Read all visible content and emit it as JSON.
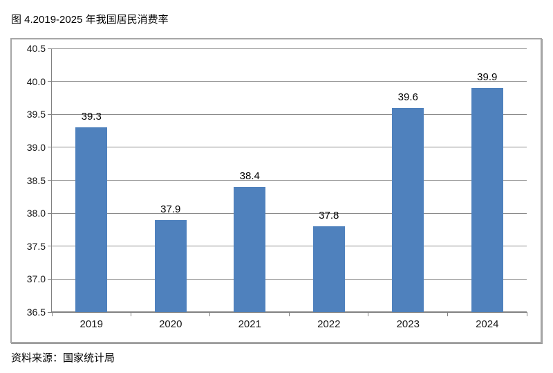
{
  "page": {
    "title": "图 4.2019-2025 年我国居民消费率",
    "source": "资料来源：国家统计局"
  },
  "chart_data": {
    "type": "bar",
    "title": "图 4.2019-2025 年我国居民消费率",
    "categories": [
      "2019",
      "2020",
      "2021",
      "2022",
      "2023",
      "2024"
    ],
    "values": [
      39.3,
      37.9,
      38.4,
      37.8,
      39.6,
      39.9
    ],
    "data_labels": [
      "39.3",
      "37.9",
      "38.4",
      "37.8",
      "39.6",
      "39.9"
    ],
    "xlabel": "",
    "ylabel": "",
    "ylim": [
      36.5,
      40.5
    ],
    "ytick_step": 0.5,
    "ytick_labels": [
      "36.5",
      "37.0",
      "37.5",
      "38.0",
      "38.5",
      "39.0",
      "39.5",
      "40.0",
      "40.5"
    ],
    "grid": true,
    "legend": false,
    "bar_color": "#4f81bd",
    "gridline_color": "#8a8a8a",
    "axis_color": "#808080",
    "source_note": "资料来源：国家统计局"
  }
}
